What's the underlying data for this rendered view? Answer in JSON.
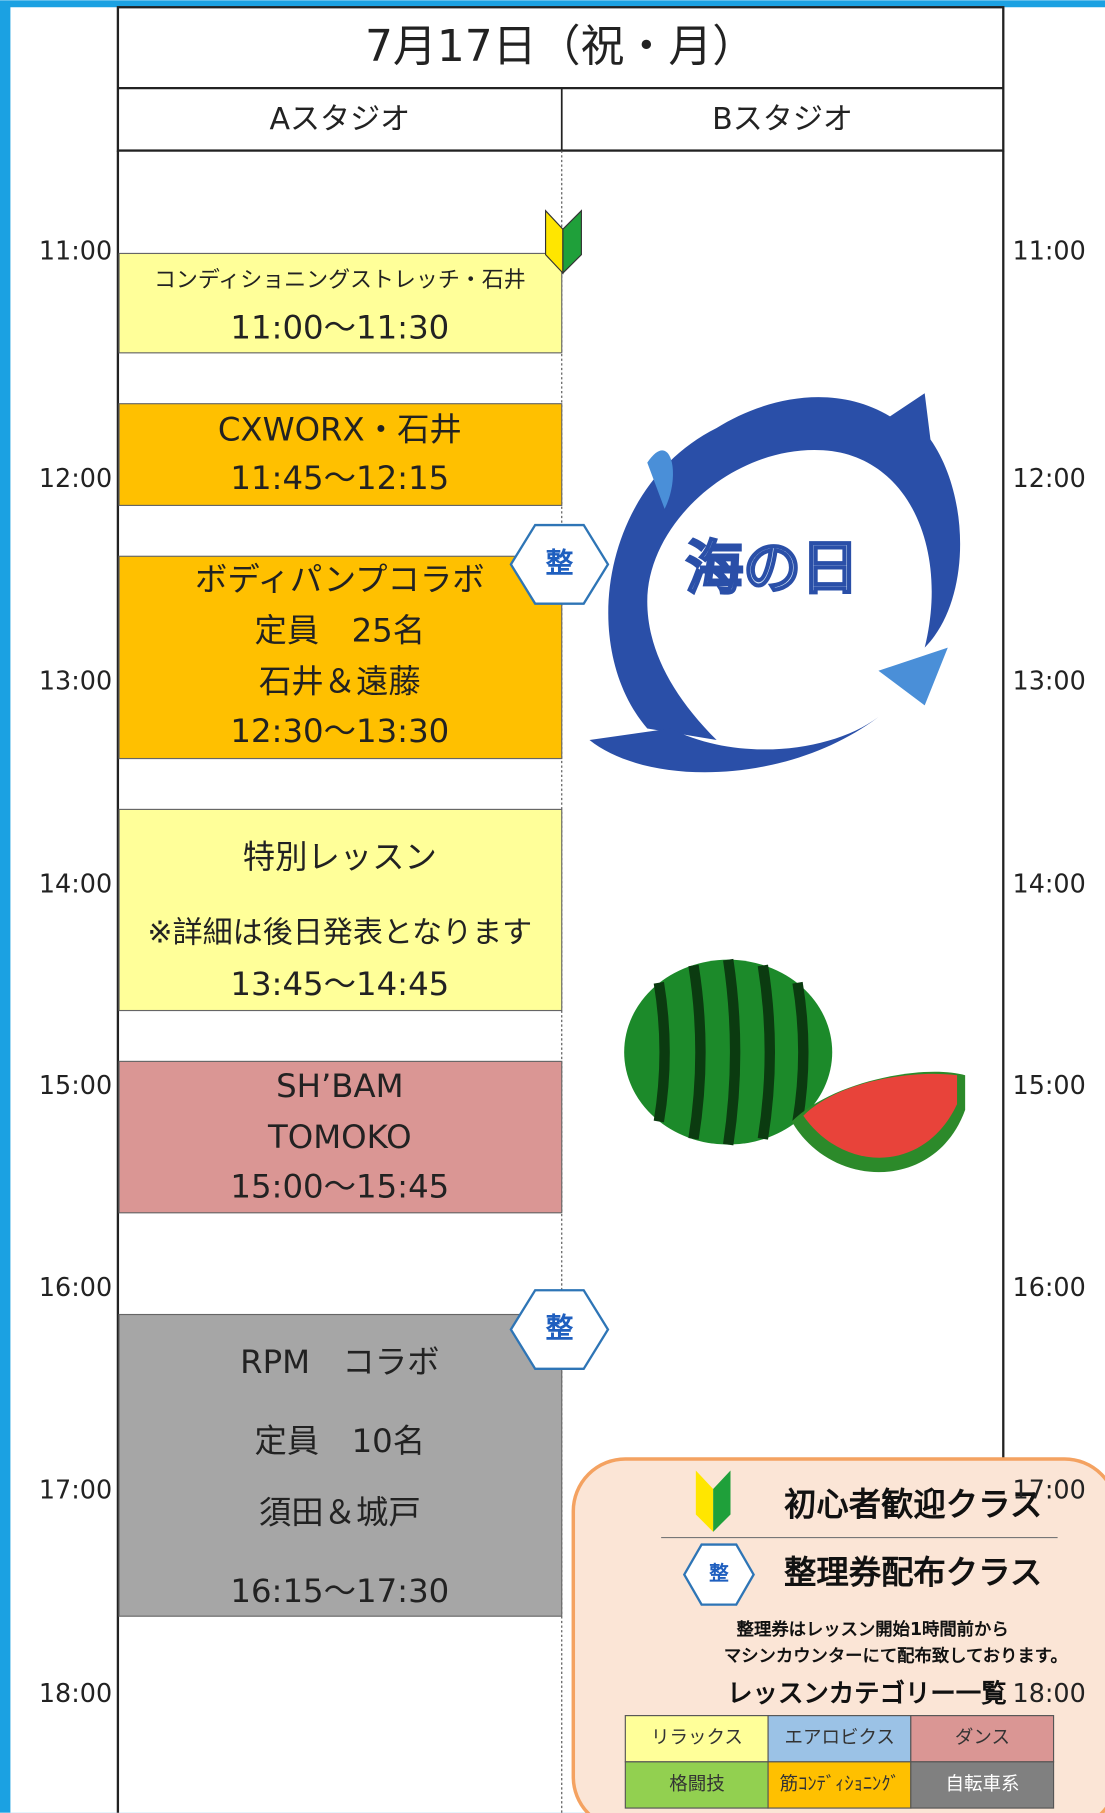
{
  "header": {
    "date": "7月17日（祝・月）",
    "studios": [
      "Aスタジオ",
      "Bスタジオ"
    ]
  },
  "times": [
    "11:00",
    "12:00",
    "13:00",
    "14:00",
    "15:00",
    "16:00",
    "17:00",
    "18:00"
  ],
  "lessons": [
    {
      "lines": [
        "コンディショニングストレッチ・石井",
        "11:00〜11:30"
      ],
      "color": "#ffff99"
    },
    {
      "lines": [
        "CXWORX・石井",
        "11:45〜12:15"
      ],
      "color": "#ffc000"
    },
    {
      "lines": [
        "ボディパンプコラボ",
        "定員　25名",
        "石井＆遠藤",
        "12:30〜13:30"
      ],
      "color": "#ffc000"
    },
    {
      "lines": [
        "特別レッスン",
        "※詳細は後日発表となります",
        "13:45〜14:45"
      ],
      "color": "#ffff99"
    },
    {
      "lines": [
        "SH’BAM",
        "TOMOKO",
        "15:00〜15:45"
      ],
      "color": "#da9694"
    },
    {
      "lines": [
        "RPM　コラボ",
        "定員　10名",
        "須田＆城戸",
        "16:15〜17:30"
      ],
      "color": "#a6a6a6"
    }
  ],
  "badge": "整",
  "decoration": "海の日",
  "legend": {
    "beginner": "初心者歓迎クラス",
    "ticket": "整理券配布クラス",
    "note": [
      "整理券はレッスン開始1時間前から",
      "マシンカウンターにて配布致しております。"
    ],
    "category_title": "レッスンカテゴリー一覧",
    "categories": [
      {
        "label": "リラックス",
        "color": "#ffff99"
      },
      {
        "label": "エアロビクス",
        "color": "#9bc2e6"
      },
      {
        "label": "ダンス",
        "color": "#da9694"
      },
      {
        "label": "格闘技",
        "color": "#92d050"
      },
      {
        "label": "筋ｺﾝﾃﾞｨｼｮﾆﾝｸﾞ",
        "color": "#ffc000"
      },
      {
        "label": "自転車系",
        "color": "#808080"
      }
    ]
  }
}
